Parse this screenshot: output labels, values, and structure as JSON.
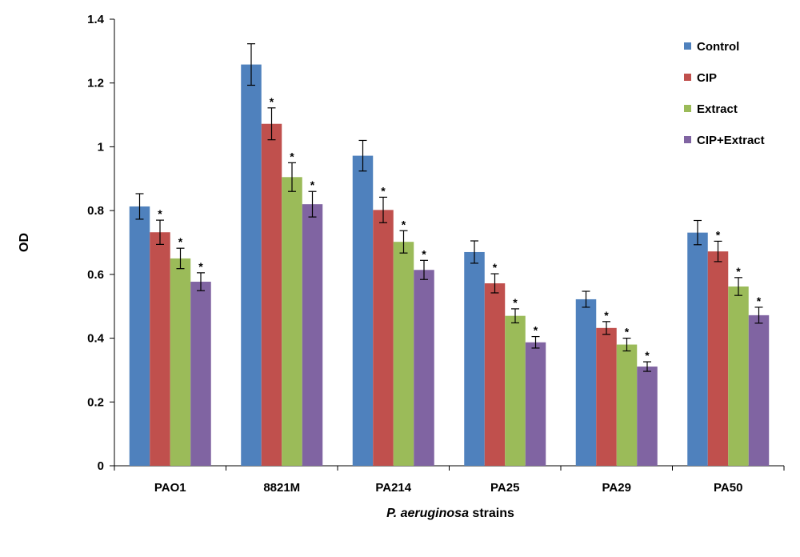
{
  "chart_data": {
    "type": "bar",
    "title": "",
    "ylabel": "OD",
    "xlabel_italic": "P. aeruginosa",
    "xlabel_rest": " strains",
    "ylim": [
      0,
      1.4
    ],
    "yticks": [
      0,
      0.2,
      0.4,
      0.6,
      0.8,
      1,
      1.2,
      1.4
    ],
    "ytick_labels": [
      "0",
      "0.2",
      "0.4",
      "0.6",
      "0.8",
      "1",
      "1.2",
      "1.4"
    ],
    "grid": false,
    "legend_position": "top-right",
    "significance_marker": "*",
    "categories": [
      "PAO1",
      "8821M",
      "PA214",
      "PA25",
      "PA29",
      "PA50"
    ],
    "series": [
      {
        "name": "Control",
        "color": "#4f81bd",
        "values": [
          0.813,
          1.258,
          0.972,
          0.67,
          0.522,
          0.731
        ],
        "errors": [
          0.04,
          0.065,
          0.048,
          0.035,
          0.025,
          0.038
        ],
        "significant": [
          false,
          false,
          false,
          false,
          false,
          false
        ]
      },
      {
        "name": "CIP",
        "color": "#c0504d",
        "values": [
          0.732,
          1.072,
          0.802,
          0.572,
          0.432,
          0.672
        ],
        "errors": [
          0.038,
          0.05,
          0.04,
          0.03,
          0.02,
          0.032
        ],
        "significant": [
          true,
          true,
          true,
          true,
          true,
          true
        ]
      },
      {
        "name": "Extract",
        "color": "#9bbb59",
        "values": [
          0.65,
          0.905,
          0.702,
          0.47,
          0.38,
          0.562
        ],
        "errors": [
          0.032,
          0.045,
          0.035,
          0.022,
          0.02,
          0.028
        ],
        "significant": [
          true,
          true,
          true,
          true,
          true,
          true
        ]
      },
      {
        "name": "CIP+Extract",
        "color": "#8064a2",
        "values": [
          0.577,
          0.82,
          0.614,
          0.387,
          0.311,
          0.472
        ],
        "errors": [
          0.028,
          0.04,
          0.03,
          0.018,
          0.015,
          0.025
        ],
        "significant": [
          true,
          true,
          true,
          true,
          true,
          true
        ]
      }
    ]
  }
}
